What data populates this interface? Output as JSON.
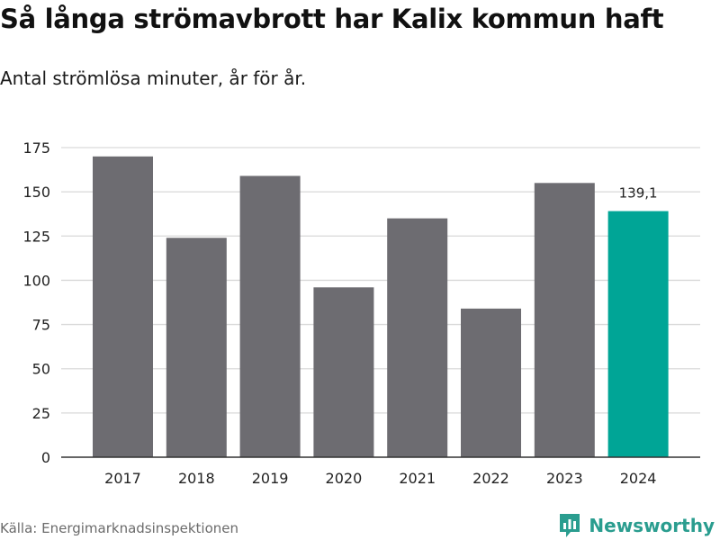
{
  "title": "Så långa strömavbrott har Kalix kommun haft",
  "subtitle": "Antal strömlösa minuter, år för år.",
  "source": "Källa: Energimarknadsinspektionen",
  "brand": {
    "name": "Newsworthy",
    "icon": "newsworthy-logo-icon"
  },
  "colors": {
    "bar": "#6d6c71",
    "highlight": "#00a596",
    "grid": "#d9d9d9",
    "axis": "#333333",
    "brand": "#2a9d8f"
  },
  "chart_data": {
    "type": "bar",
    "title": "Så långa strömavbrott har Kalix kommun haft",
    "xlabel": "",
    "ylabel": "",
    "categories": [
      "2017",
      "2018",
      "2019",
      "2020",
      "2021",
      "2022",
      "2023",
      "2024"
    ],
    "values": [
      170,
      124,
      159,
      96,
      135,
      84,
      155,
      139.1
    ],
    "highlight_index": 7,
    "highlight_label": "139,1",
    "ylim": [
      0,
      175
    ],
    "yticks": [
      0,
      25,
      50,
      75,
      100,
      125,
      150,
      175
    ],
    "grid": true
  }
}
